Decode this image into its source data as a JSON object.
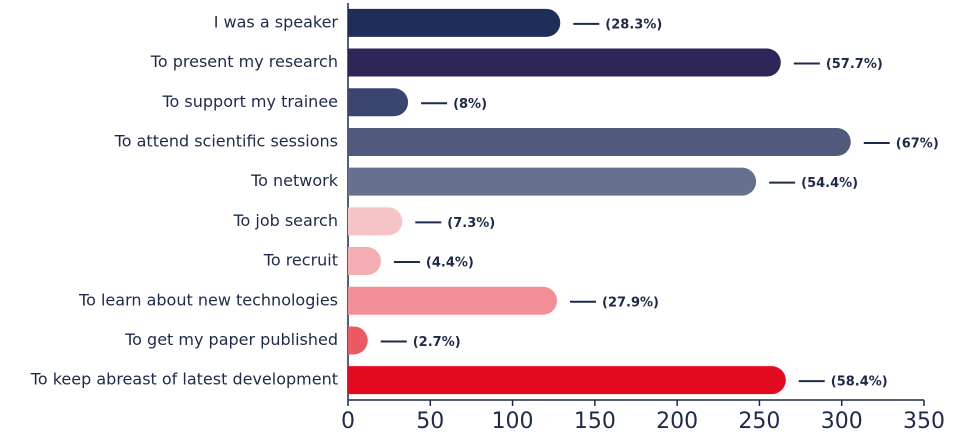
{
  "chart_data": {
    "type": "barh",
    "categories": [
      "I was a speaker",
      "To present my research",
      "To support my trainee",
      "To attend scientific sessions",
      "To network",
      "To job search",
      "To recruit",
      "To learn about new technologies",
      "To get my paper published",
      "To keep abreast of latest development"
    ],
    "values": [
      129,
      263,
      36.5,
      305.5,
      248,
      33,
      20,
      127,
      12,
      266
    ],
    "annotations": [
      "(28.3%)",
      "(57.7%)",
      "(8%)",
      "(67%)",
      "(54.4%)",
      "(7.3%)",
      "(4.4%)",
      "(27.9%)",
      "(2.7%)",
      "(58.4%)"
    ],
    "colors": [
      "#1f2d5a",
      "#2e2558",
      "#3a4470",
      "#4f5a7c",
      "#66718f",
      "#f5c4c6",
      "#f4adb0",
      "#f28f96",
      "#eb5a62",
      "#e30a1f"
    ],
    "xlim": [
      0,
      350
    ],
    "xticks": [
      0,
      50,
      100,
      150,
      200,
      250,
      300,
      350
    ]
  }
}
